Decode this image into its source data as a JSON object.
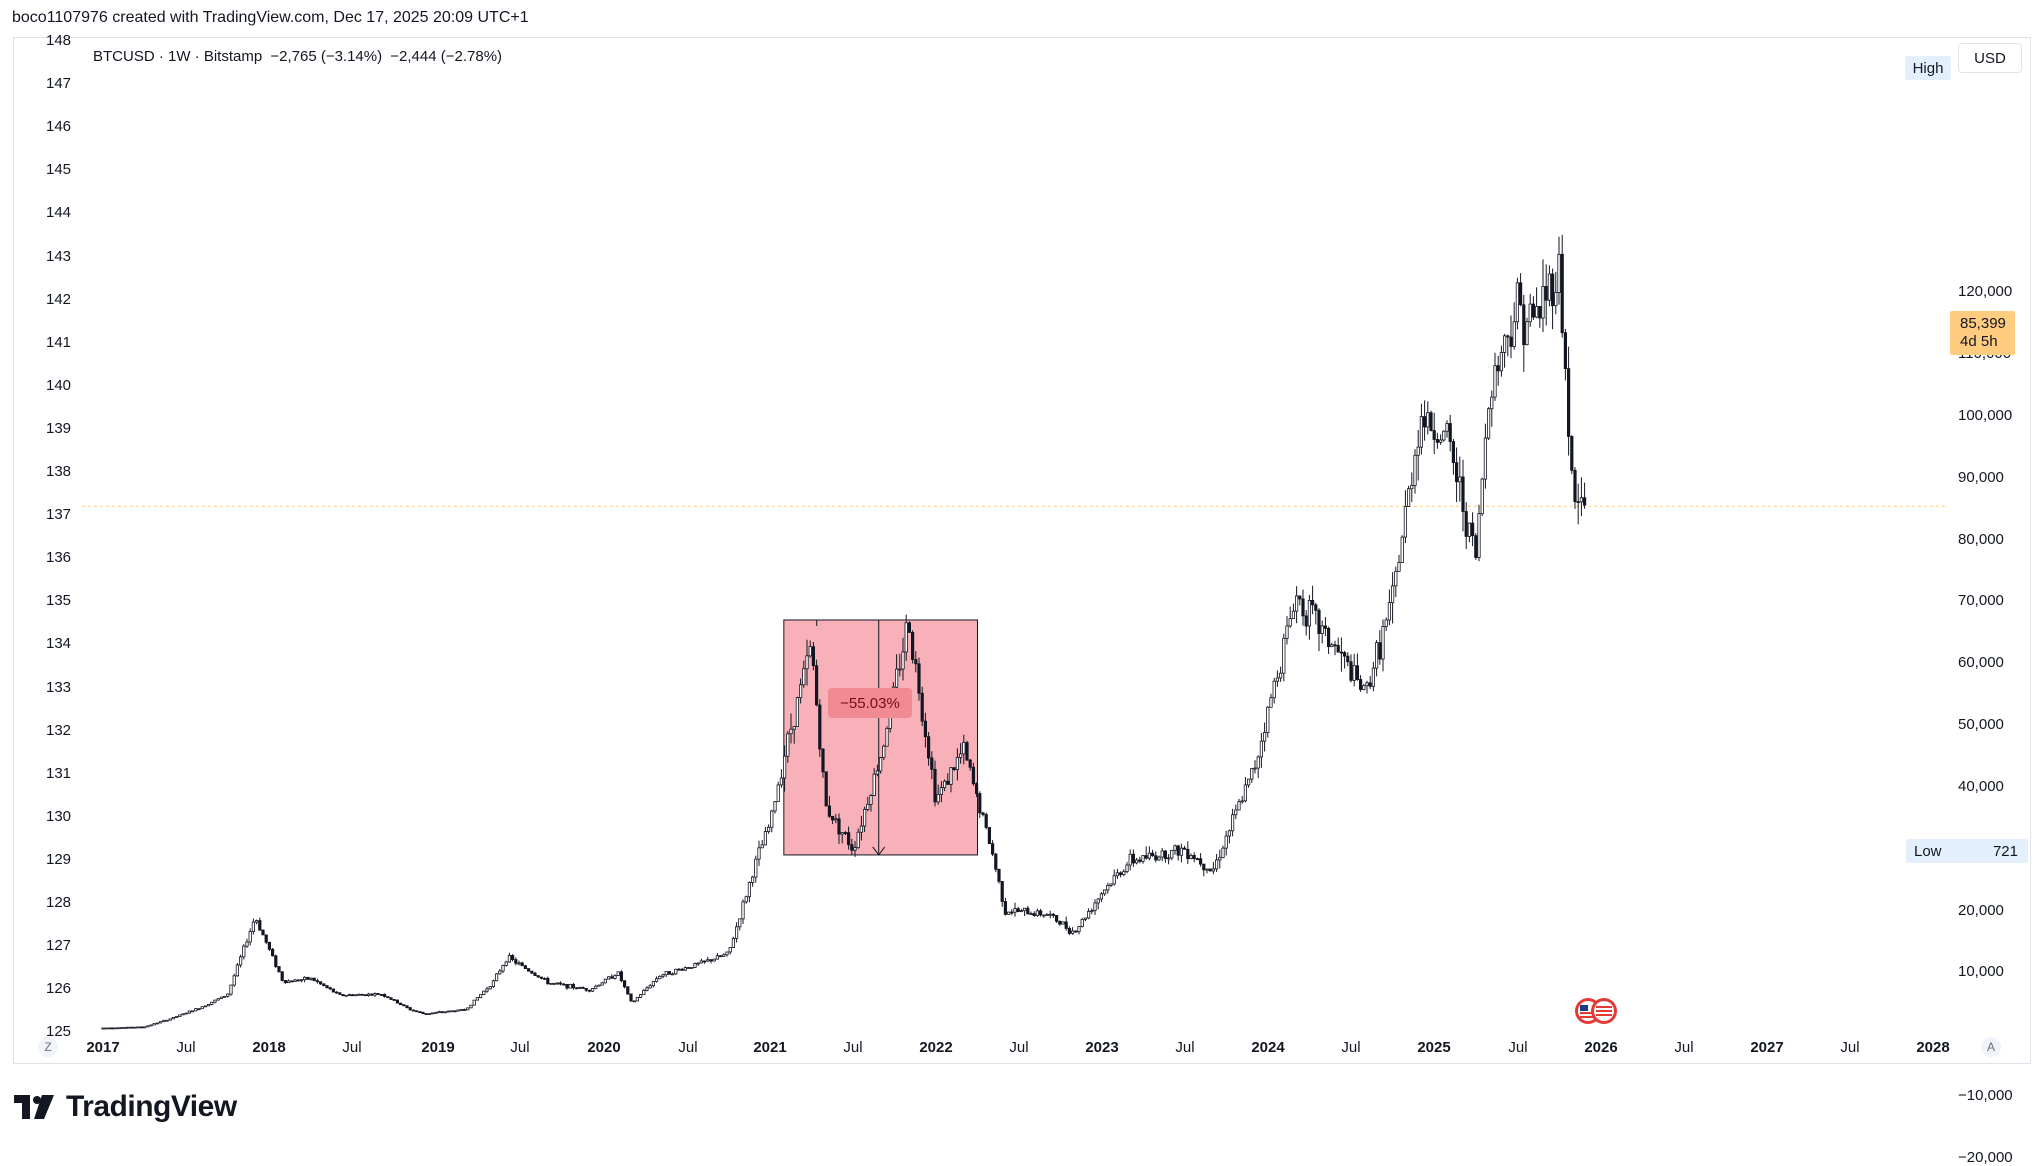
{
  "header": {
    "credit": "boco1107976 created with TradingView.com, Dec 17, 2025 20:09 UTC+1"
  },
  "legend": {
    "symbol": "BTCUSD · 1W · Bitstamp",
    "change1": "−2,765 (−3.14%)",
    "change2": "−2,444 (−2.78%)"
  },
  "axis": {
    "currency_button": "USD",
    "high_label": "High",
    "low_label": "Low",
    "low_value": "721",
    "last_price": "85,399",
    "countdown": "4d 5h",
    "left_ticks": [
      "148",
      "147",
      "146",
      "145",
      "144",
      "143",
      "142",
      "141",
      "140",
      "139",
      "138",
      "137",
      "136",
      "135",
      "134",
      "133",
      "132",
      "131",
      "130",
      "129",
      "128",
      "127",
      "126",
      "125"
    ],
    "right_ticks": [
      "120,000",
      "110,000",
      "100,000",
      "90,000",
      "80,000",
      "70,000",
      "60,000",
      "50,000",
      "40,000",
      "30,000",
      "20,000",
      "10,000",
      "−10,000",
      "−20,000"
    ],
    "x_ticks": [
      "2017",
      "Jul",
      "2018",
      "Jul",
      "2019",
      "Jul",
      "2020",
      "Jul",
      "2021",
      "Jul",
      "2022",
      "Jul",
      "2023",
      "Jul",
      "2024",
      "Jul",
      "2025",
      "Jul",
      "2026",
      "Jul",
      "2027",
      "Jul",
      "2028"
    ],
    "z_button": "Z",
    "a_button": "A"
  },
  "annotation": {
    "drawdown_label": "−55.03%",
    "box_color": "#f7a9b0"
  },
  "brand": {
    "name": "TradingView"
  },
  "colors": {
    "candle": "#131722",
    "last_price_line": "#ffcc80",
    "accent": "#2962ff"
  },
  "chart_data": {
    "type": "candlestick",
    "symbol": "BTCUSD",
    "interval": "1W",
    "exchange": "Bitstamp",
    "currency": "USD",
    "y_range_right": [
      -25000,
      130000
    ],
    "last_price": 85399,
    "annotations": [
      {
        "type": "price-range",
        "from_date": "2021-02",
        "to_date": "2022-04",
        "top": 67000,
        "bottom": 29000,
        "label": "−55.03%"
      }
    ],
    "series": [
      {
        "points": [
          [
            "2017-01",
            1000
          ],
          [
            "2017-04",
            1200
          ],
          [
            "2017-06",
            2600
          ],
          [
            "2017-08",
            4300
          ],
          [
            "2017-10",
            6400
          ],
          [
            "2017-12",
            19000
          ],
          [
            "2018-02",
            8500
          ],
          [
            "2018-04",
            9000
          ],
          [
            "2018-06",
            6300
          ],
          [
            "2018-09",
            6500
          ],
          [
            "2018-11",
            4000
          ],
          [
            "2018-12",
            3300
          ],
          [
            "2019-03",
            4000
          ],
          [
            "2019-05",
            8500
          ],
          [
            "2019-06",
            12500
          ],
          [
            "2019-09",
            8300
          ],
          [
            "2019-12",
            7200
          ],
          [
            "2020-02",
            10000
          ],
          [
            "2020-03",
            5000
          ],
          [
            "2020-05",
            9500
          ],
          [
            "2020-08",
            11500
          ],
          [
            "2020-10",
            13000
          ],
          [
            "2020-12",
            28000
          ],
          [
            "2021-01",
            34000
          ],
          [
            "2021-02",
            45000
          ],
          [
            "2021-04",
            63000
          ],
          [
            "2021-05",
            37000
          ],
          [
            "2021-07",
            30000
          ],
          [
            "2021-09",
            45000
          ],
          [
            "2021-11",
            67000
          ],
          [
            "2022-01",
            38000
          ],
          [
            "2022-03",
            46000
          ],
          [
            "2022-05",
            30000
          ],
          [
            "2022-06",
            20000
          ],
          [
            "2022-09",
            19500
          ],
          [
            "2022-11",
            16500
          ],
          [
            "2023-01",
            23000
          ],
          [
            "2023-03",
            28000
          ],
          [
            "2023-07",
            30000
          ],
          [
            "2023-09",
            26500
          ],
          [
            "2023-12",
            43000
          ],
          [
            "2024-03",
            71000
          ],
          [
            "2024-06",
            62000
          ],
          [
            "2024-08",
            55000
          ],
          [
            "2024-10",
            70000
          ],
          [
            "2024-12",
            100000
          ],
          [
            "2025-02",
            96000
          ],
          [
            "2025-04",
            77000
          ],
          [
            "2025-05",
            105000
          ],
          [
            "2025-07",
            118000
          ],
          [
            "2025-08",
            115000
          ],
          [
            "2025-10",
            124000
          ],
          [
            "2025-11",
            86000
          ],
          [
            "2025-12",
            85399
          ]
        ]
      }
    ]
  }
}
